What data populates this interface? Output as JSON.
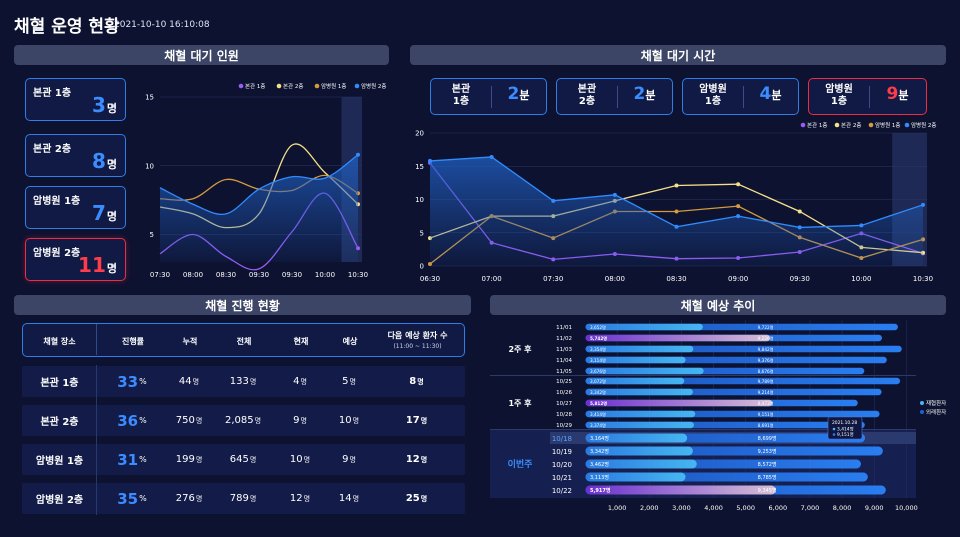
{
  "title": "채혈 운영 현황",
  "timestamp": "2021-10-10 16:10:08",
  "sections": {
    "wait_people": "채혈 대기 인원",
    "wait_time": "채혈 대기 시간",
    "progress": "채혈 진행 현황",
    "forecast": "채혈 예상 추이"
  },
  "wait_people": {
    "unit": "명",
    "boxes": [
      {
        "name": "본관 1층",
        "value": "3",
        "alert": false
      },
      {
        "name": "본관 2층",
        "value": "8",
        "alert": false
      },
      {
        "name": "암병원 1층",
        "value": "7",
        "alert": false
      },
      {
        "name": "암병원 2층",
        "value": "11",
        "alert": true
      }
    ]
  },
  "wait_time": {
    "unit": "분",
    "boxes": [
      {
        "name1": "본관",
        "name2": "1층",
        "value": "2",
        "alert": false
      },
      {
        "name1": "본관",
        "name2": "2층",
        "value": "2",
        "alert": false
      },
      {
        "name1": "암병원",
        "name2": "1층",
        "value": "4",
        "alert": false
      },
      {
        "name1": "암병원",
        "name2": "1층",
        "value": "9",
        "alert": true
      }
    ]
  },
  "colors": {
    "s1": "#9b5cf6",
    "s2": "#f5e08a",
    "s3": "#d59a3e",
    "s4": "#2f8cff",
    "area": "#2160c4"
  },
  "table": {
    "headers": [
      "채혈 장소",
      "진행률",
      "누적",
      "전체",
      "현재",
      "예상",
      "다음 예상 환자 수"
    ],
    "next_sub": "(11:00 ~ 11:30)",
    "rows": [
      {
        "place": "본관 1층",
        "rate": "33",
        "cum": "44",
        "total": "133",
        "cur": "4",
        "exp": "5",
        "next": "8"
      },
      {
        "place": "본관 2층",
        "rate": "36",
        "cum": "750",
        "total": "2,085",
        "cur": "9",
        "exp": "10",
        "next": "17"
      },
      {
        "place": "암병원 1층",
        "rate": "31",
        "cum": "199",
        "total": "645",
        "cur": "10",
        "exp": "9",
        "next": "12"
      },
      {
        "place": "암병원 2층",
        "rate": "35",
        "cum": "276",
        "total": "789",
        "cur": "12",
        "exp": "14",
        "next": "25"
      }
    ],
    "pct": "%",
    "unit": "명"
  },
  "chart_data": [
    {
      "type": "line",
      "legend": [
        "본관 1층",
        "본관 2층",
        "암병원 1층",
        "암병원 2층"
      ],
      "x": [
        "07:30",
        "08:00",
        "08:30",
        "09:30",
        "09:30",
        "10:00",
        "10:30"
      ],
      "ylim": [
        3,
        15
      ],
      "yticks": [
        5,
        10,
        15
      ],
      "series": [
        {
          "name": "본관 1층",
          "values": [
            3.6,
            5.0,
            3.4,
            2.5,
            5.2,
            8.0,
            4.0
          ]
        },
        {
          "name": "본관 2층",
          "values": [
            7.0,
            6.5,
            5.5,
            6.5,
            11.5,
            9.5,
            7.2
          ]
        },
        {
          "name": "암병원 1층",
          "values": [
            7.6,
            7.6,
            9.0,
            8.3,
            8.2,
            9.3,
            8.0
          ]
        },
        {
          "name": "암병원 2층",
          "values": [
            8.4,
            7.2,
            6.5,
            8.3,
            9.2,
            9.1,
            10.8
          ]
        }
      ],
      "area_series": "암병원 2층"
    },
    {
      "type": "line",
      "legend": [
        "본관 1층",
        "본관 2층",
        "암병원 1층",
        "암병원 2층"
      ],
      "x": [
        "06:30",
        "07:00",
        "07:30",
        "08:00",
        "08:30",
        "09:00",
        "09:30",
        "10:00",
        "10:30"
      ],
      "ylim": [
        0,
        20
      ],
      "yticks": [
        0,
        5,
        10,
        15,
        20
      ],
      "series": [
        {
          "name": "본관 1층",
          "values": [
            15.5,
            3.5,
            1.0,
            1.8,
            1.1,
            1.2,
            2.1,
            4.9,
            1.9
          ]
        },
        {
          "name": "본관 2층",
          "values": [
            4.2,
            7.5,
            7.5,
            9.8,
            12.1,
            12.3,
            8.2,
            2.8,
            2.0
          ]
        },
        {
          "name": "암병원 1층",
          "values": [
            0.3,
            7.5,
            4.2,
            8.2,
            8.2,
            9.0,
            4.3,
            1.2,
            4.0
          ]
        },
        {
          "name": "암병원 2층",
          "values": [
            15.8,
            16.4,
            9.8,
            10.7,
            5.9,
            7.5,
            5.8,
            6.1,
            9.2
          ]
        }
      ],
      "area_series": "암병원 2층"
    },
    {
      "type": "bar",
      "orientation": "horizontal",
      "xticks": [
        "1,000",
        "2,000",
        "3,000",
        "4,000",
        "5,000",
        "6,000",
        "7,000",
        "8,000",
        "9,000",
        "10,000"
      ],
      "xlim": [
        0,
        10300
      ],
      "legend": [
        "재협환자",
        "외래환자"
      ],
      "groups": [
        {
          "label": "2주 후",
          "rows": [
            {
              "date": "11/01",
              "a": 3652,
              "a_label": "3,652명",
              "b": 9722,
              "b_label": "9,722명"
            },
            {
              "date": "11/02",
              "a": 5742,
              "a_label": "5,742명",
              "b": 9226,
              "b_label": "9,226명",
              "hl": true
            },
            {
              "date": "11/03",
              "a": 3354,
              "a_label": "3,354명",
              "b": 9842,
              "b_label": "9,842명"
            },
            {
              "date": "11/04",
              "a": 3114,
              "a_label": "3,114명",
              "b": 9376,
              "b_label": "9,376명"
            },
            {
              "date": "11/05",
              "a": 3676,
              "a_label": "3,676명",
              "b": 8676,
              "b_label": "8,676명"
            }
          ]
        },
        {
          "label": "1주 후",
          "rows": [
            {
              "date": "10/25",
              "a": 3072,
              "a_label": "3,072명",
              "b": 9789,
              "b_label": "9,789명"
            },
            {
              "date": "10/26",
              "a": 3342,
              "a_label": "3,342명",
              "b": 9214,
              "b_label": "9,214명"
            },
            {
              "date": "10/27",
              "a": 5812,
              "a_label": "5,812명",
              "b": 8473,
              "b_label": "8,473명",
              "hl": true
            },
            {
              "date": "10/28",
              "a": 3414,
              "a_label": "3,414명",
              "b": 9151,
              "b_label": "9,151명"
            },
            {
              "date": "10/29",
              "a": 3374,
              "a_label": "3,374명",
              "b": 8691,
              "b_label": "8,691명"
            }
          ]
        },
        {
          "label": "이번주",
          "current": true,
          "rows": [
            {
              "date": "10/18",
              "a": 3164,
              "a_label": "3,164명",
              "b": 8699,
              "b_label": "8,699명",
              "today": true
            },
            {
              "date": "10/19",
              "a": 3342,
              "a_label": "3,342명",
              "b": 9253,
              "b_label": "9,253명"
            },
            {
              "date": "10/20",
              "a": 3462,
              "a_label": "3,462명",
              "b": 8572,
              "b_label": "8,572명"
            },
            {
              "date": "10/21",
              "a": 3113,
              "a_label": "3,113명",
              "b": 8785,
              "b_label": "8,785명"
            },
            {
              "date": "10/22",
              "a": 5917,
              "a_label": "5,917명",
              "b": 9345,
              "b_label": "9,345명",
              "hl": true
            }
          ]
        }
      ],
      "tooltip": {
        "date": "2021.10.28",
        "line1": "3,414명",
        "line2": "9,151명"
      }
    }
  ]
}
